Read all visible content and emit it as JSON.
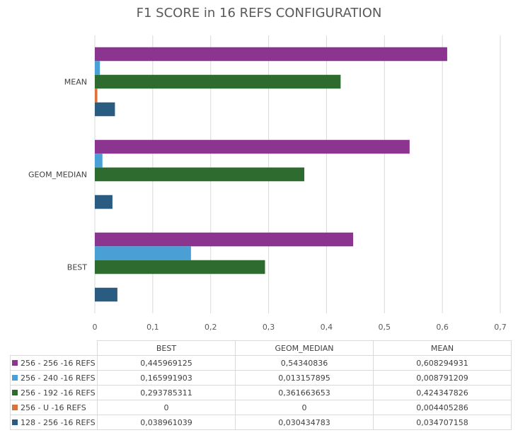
{
  "chart_data": {
    "type": "bar",
    "orientation": "horizontal",
    "title": "F1 SCORE in 16 REFS CONFIGURATION",
    "categories": [
      "BEST",
      "GEOM_MEDIAN",
      "MEAN"
    ],
    "xlim": [
      0,
      0.7
    ],
    "x_ticks": [
      "0",
      "0,1",
      "0,2",
      "0,3",
      "0,4",
      "0,5",
      "0,6",
      "0,7"
    ],
    "grid": true,
    "legend": "data-table",
    "series": [
      {
        "name": "256 - 256 -16 REFS",
        "color": "#8b3590",
        "values": [
          0.445969125,
          0.54340836,
          0.608294931
        ],
        "labels": [
          "0,445969125",
          "0,54340836",
          "0,608294931"
        ]
      },
      {
        "name": "256 - 240 -16 REFS",
        "color": "#4aa0d5",
        "values": [
          0.165991903,
          0.013157895,
          0.008791209
        ],
        "labels": [
          "0,165991903",
          "0,013157895",
          "0,008791209"
        ]
      },
      {
        "name": "256 - 192 -16 REFS",
        "color": "#2e6b2e",
        "values": [
          0.293785311,
          0.361663653,
          0.424347826
        ],
        "labels": [
          "0,293785311",
          "0,361663653",
          "0,424347826"
        ]
      },
      {
        "name": "256 - U -16 REFS",
        "color": "#d9733a",
        "values": [
          0,
          0,
          0.004405286
        ],
        "labels": [
          "0",
          "0",
          "0,004405286"
        ]
      },
      {
        "name": "128 - 256 -16 REFS",
        "color": "#2a5b80",
        "values": [
          0.038961039,
          0.030434783,
          0.034707158
        ],
        "labels": [
          "0,038961039",
          "0,030434783",
          "0,034707158"
        ]
      }
    ]
  }
}
